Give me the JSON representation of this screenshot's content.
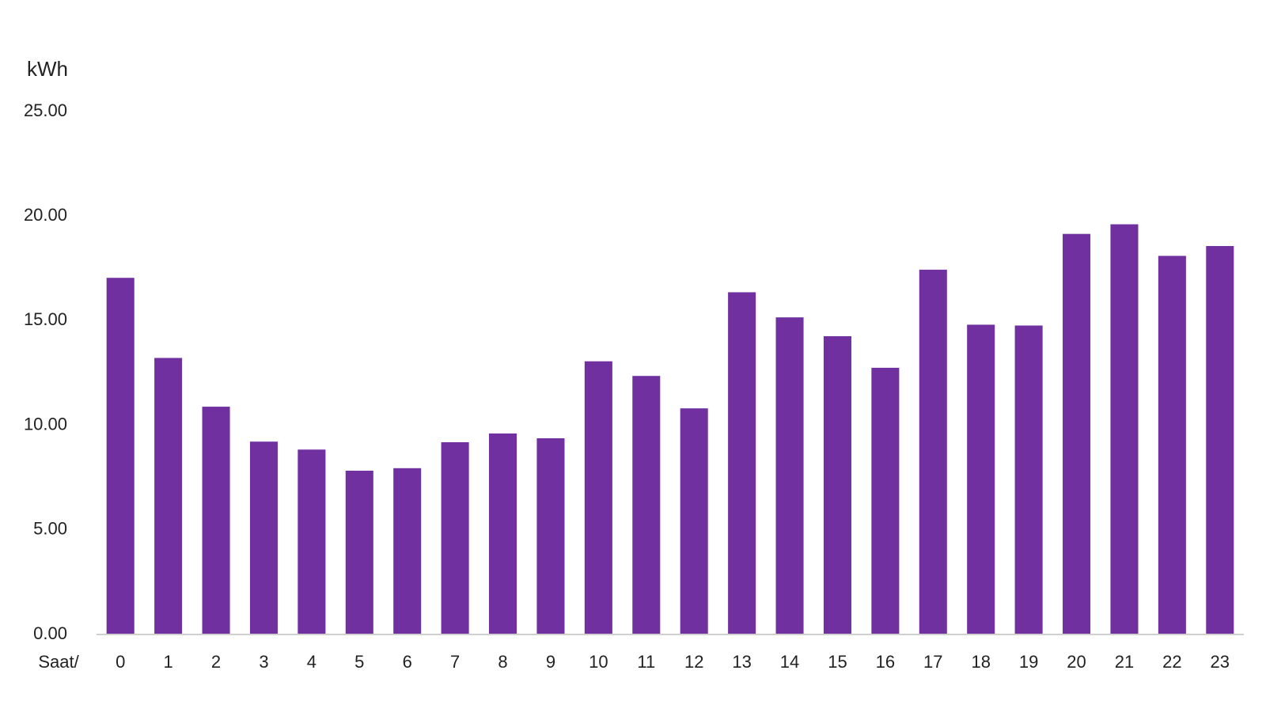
{
  "chart_data": {
    "type": "bar",
    "y_label": "kWh",
    "x_label": "Saat/",
    "categories": [
      "0",
      "1",
      "2",
      "3",
      "4",
      "5",
      "6",
      "7",
      "8",
      "9",
      "10",
      "11",
      "12",
      "13",
      "14",
      "15",
      "16",
      "17",
      "18",
      "19",
      "20",
      "21",
      "22",
      "23"
    ],
    "values": [
      17.05,
      13.22,
      10.89,
      9.22,
      8.84,
      7.83,
      7.95,
      9.19,
      9.61,
      9.38,
      13.06,
      12.36,
      10.81,
      16.36,
      15.16,
      14.26,
      12.75,
      17.44,
      14.81,
      14.77,
      19.15,
      19.61,
      18.1,
      18.57
    ],
    "color": "#7030a0",
    "ylim": [
      0,
      25
    ],
    "yticks": [
      {
        "value": 0,
        "label": "0.00"
      },
      {
        "value": 5,
        "label": "5.00"
      },
      {
        "value": 10,
        "label": "10.00"
      },
      {
        "value": 15,
        "label": "15.00"
      },
      {
        "value": 20,
        "label": "20.00"
      },
      {
        "value": 25,
        "label": "25.00"
      }
    ],
    "grid": false
  }
}
